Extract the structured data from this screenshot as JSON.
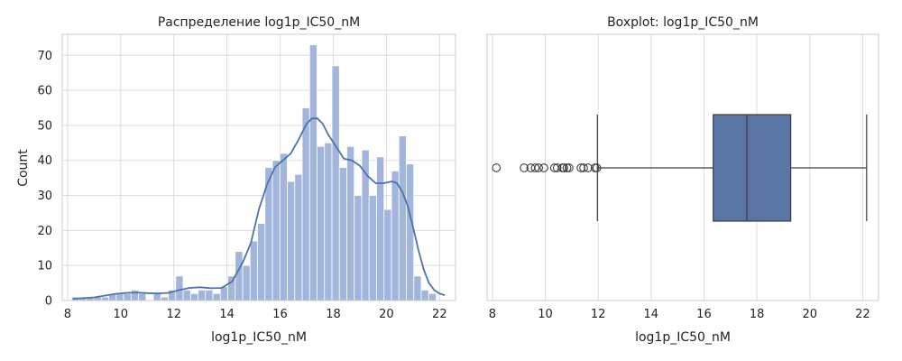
{
  "chart_data": [
    {
      "type": "histogram",
      "title": "Распределение log1p_IC50_nM",
      "xlabel": "log1p_IC50_nM",
      "ylabel": "Count",
      "xlim": [
        7.8,
        22.6
      ],
      "ylim": [
        0,
        76
      ],
      "xticks": [
        "8",
        "10",
        "12",
        "14",
        "16",
        "18",
        "20",
        "22"
      ],
      "yticks": [
        "0",
        "10",
        "20",
        "30",
        "40",
        "50",
        "60",
        "70"
      ],
      "grid": true,
      "bar_color": "#a1b6da",
      "bin_start": 8.15,
      "bin_width": 0.28,
      "counts": [
        1,
        1,
        1,
        1,
        1,
        2,
        2,
        2,
        3,
        2,
        0,
        2,
        1,
        3,
        7,
        3,
        2,
        3,
        3,
        2,
        4,
        7,
        14,
        10,
        17,
        22,
        38,
        40,
        42,
        34,
        36,
        55,
        73,
        44,
        45,
        67,
        38,
        44,
        30,
        43,
        30,
        41,
        26,
        37,
        47,
        39,
        7,
        3,
        2
      ],
      "kde": {
        "color": "#4c72b0",
        "x": [
          8.2,
          8.6,
          9.0,
          9.4,
          9.8,
          10.2,
          10.6,
          11.0,
          11.4,
          11.8,
          12.2,
          12.6,
          13.0,
          13.4,
          13.8,
          14.2,
          14.6,
          14.9,
          15.2,
          15.5,
          15.8,
          16.1,
          16.4,
          16.7,
          17.0,
          17.2,
          17.4,
          17.6,
          17.8,
          18.1,
          18.4,
          18.7,
          19.0,
          19.3,
          19.6,
          19.9,
          20.2,
          20.4,
          20.6,
          20.8,
          21.0,
          21.2,
          21.4,
          21.6,
          21.8,
          22.0,
          22.2
        ],
        "y": [
          0.5,
          0.7,
          0.9,
          1.4,
          1.9,
          2.2,
          2.3,
          2.1,
          2.0,
          2.2,
          3.0,
          3.6,
          3.8,
          3.5,
          3.6,
          5.5,
          11.0,
          16.5,
          26.0,
          33.0,
          38.0,
          40.0,
          42.0,
          46.0,
          50.5,
          52.0,
          52.0,
          50.5,
          47.5,
          44.0,
          40.5,
          40.0,
          38.5,
          35.5,
          33.5,
          33.5,
          34.0,
          33.5,
          31.0,
          27.0,
          21.0,
          14.5,
          9.0,
          5.0,
          3.0,
          2.0,
          1.5
        ]
      }
    },
    {
      "type": "boxplot",
      "title": "Boxplot: log1p_IC50_nM",
      "xlabel": "log1p_IC50_nM",
      "xlim": [
        7.8,
        22.6
      ],
      "xticks": [
        "8",
        "10",
        "12",
        "14",
        "16",
        "18",
        "20",
        "22"
      ],
      "grid": true,
      "box_color": "#5875a4",
      "q1": 16.35,
      "median": 17.62,
      "q3": 19.28,
      "whisker_low": 11.97,
      "whisker_high": 22.15,
      "outliers": [
        8.15,
        9.2,
        9.45,
        9.62,
        9.75,
        9.95,
        10.35,
        10.45,
        10.65,
        10.7,
        10.82,
        10.9,
        11.35,
        11.45,
        11.62,
        11.88,
        11.95
      ]
    }
  ]
}
